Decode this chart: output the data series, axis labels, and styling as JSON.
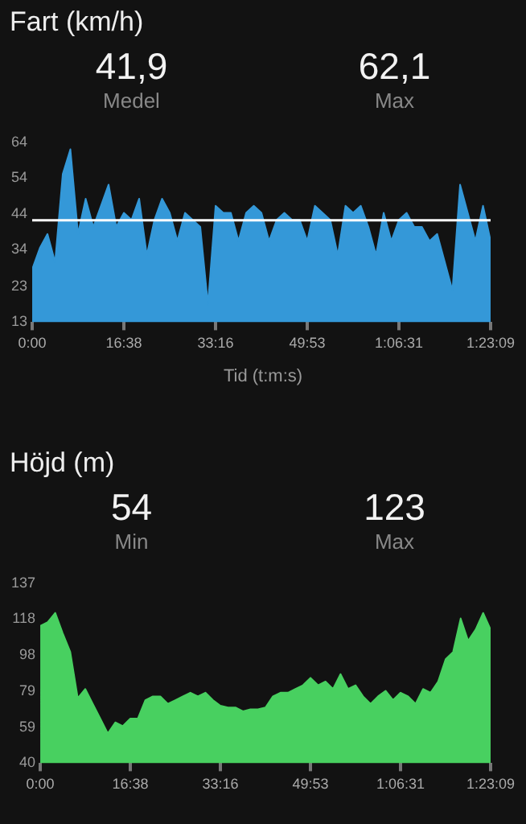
{
  "chart_data": [
    {
      "type": "area",
      "title": "Fart (km/h)",
      "xlabel": "Tid (t:m:s)",
      "annotations": [
        "41,9",
        "Medel",
        "62,1",
        "Max"
      ],
      "x": [
        0,
        1.386,
        2.772,
        4.158,
        5.544,
        6.93,
        8.316,
        9.702,
        11.088,
        12.474,
        13.86,
        15.246,
        16.632,
        18.018,
        19.404,
        20.79,
        22.176,
        23.562,
        24.948,
        26.334,
        27.72,
        29.106,
        30.492,
        31.878,
        33.264,
        34.65,
        36.036,
        37.422,
        38.808,
        40.194,
        41.58,
        42.966,
        44.352,
        45.738,
        47.124,
        48.51,
        49.896,
        51.282,
        52.668,
        54.054,
        55.44,
        56.826,
        58.212,
        59.598,
        60.984,
        62.37,
        63.756,
        65.142,
        66.528,
        67.914,
        69.3,
        70.686,
        72.072,
        73.458,
        74.844,
        76.23,
        77.616,
        79.002,
        80.388,
        81.774,
        83.15
      ],
      "series": [
        {
          "color": "#3498d8",
          "values": [
            28,
            34,
            38,
            30,
            55,
            62,
            38,
            48,
            40,
            46,
            52,
            40,
            44,
            42,
            48,
            32,
            42,
            48,
            44,
            36,
            44,
            42,
            40,
            18,
            46,
            44,
            44,
            36,
            44,
            46,
            44,
            36,
            42,
            44,
            42,
            42,
            36,
            46,
            44,
            42,
            32,
            46,
            44,
            46,
            40,
            32,
            44,
            36,
            42,
            44,
            40,
            40,
            36,
            38,
            30,
            22,
            52,
            44,
            36,
            46,
            36
          ]
        }
      ],
      "xlim": [
        0,
        83.15
      ],
      "xticks": [
        {
          "value": 0,
          "label": "0:00"
        },
        {
          "value": 16.633,
          "label": "16:38"
        },
        {
          "value": 33.267,
          "label": "33:16"
        },
        {
          "value": 49.883,
          "label": "49:53"
        },
        {
          "value": 66.517,
          "label": "1:06:31"
        },
        {
          "value": 83.15,
          "label": "1:23:09"
        }
      ],
      "ylim": [
        13,
        64
      ],
      "yticks": [
        13,
        {
          "value": 23.2,
          "label": "23"
        },
        {
          "value": 33.6,
          "label": "34"
        },
        {
          "value": 43.6,
          "label": "44"
        },
        {
          "value": 53.8,
          "label": "54"
        },
        64
      ],
      "ref_lines": [
        {
          "axis": "y",
          "value": 41.9,
          "color": "#ffffff"
        }
      ]
    },
    {
      "type": "area",
      "title": "Höjd (m)",
      "annotations": [
        "54",
        "Min",
        "123",
        "Max"
      ],
      "x": [
        0,
        1.386,
        2.772,
        4.158,
        5.544,
        6.93,
        8.316,
        9.702,
        11.088,
        12.474,
        13.86,
        15.246,
        16.632,
        18.018,
        19.404,
        20.79,
        22.176,
        23.562,
        24.948,
        26.334,
        27.72,
        29.106,
        30.492,
        31.878,
        33.264,
        34.65,
        36.036,
        37.422,
        38.808,
        40.194,
        41.58,
        42.966,
        44.352,
        45.738,
        47.124,
        48.51,
        49.896,
        51.282,
        52.668,
        54.054,
        55.44,
        56.826,
        58.212,
        59.598,
        60.984,
        62.37,
        63.756,
        65.142,
        66.528,
        67.914,
        69.3,
        70.686,
        72.072,
        73.458,
        74.844,
        76.23,
        77.616,
        79.002,
        80.388,
        81.774,
        83.15
      ],
      "series": [
        {
          "color": "#48d060",
          "values": [
            114,
            116,
            121,
            110,
            100,
            75,
            80,
            72,
            64,
            56,
            62,
            60,
            64,
            64,
            74,
            76,
            76,
            72,
            74,
            76,
            78,
            76,
            78,
            74,
            71,
            70,
            70,
            68,
            69,
            69,
            70,
            76,
            78,
            78,
            80,
            82,
            86,
            82,
            84,
            80,
            88,
            80,
            82,
            76,
            72,
            76,
            79,
            74,
            78,
            76,
            72,
            80,
            78,
            84,
            96,
            100,
            118,
            106,
            112,
            121,
            112
          ]
        }
      ],
      "xlim": [
        0,
        83.15
      ],
      "xticks": [
        {
          "value": 0,
          "label": "0:00"
        },
        {
          "value": 16.633,
          "label": "16:38"
        },
        {
          "value": 33.267,
          "label": "33:16"
        },
        {
          "value": 49.883,
          "label": "49:53"
        },
        {
          "value": 66.517,
          "label": "1:06:31"
        },
        {
          "value": 83.15,
          "label": "1:23:09"
        }
      ],
      "ylim": [
        40,
        137
      ],
      "yticks": [
        40,
        {
          "value": 59.4,
          "label": "59"
        },
        {
          "value": 78.8,
          "label": "79"
        },
        {
          "value": 98.2,
          "label": "98"
        },
        {
          "value": 117.6,
          "label": "118"
        },
        137
      ]
    }
  ]
}
